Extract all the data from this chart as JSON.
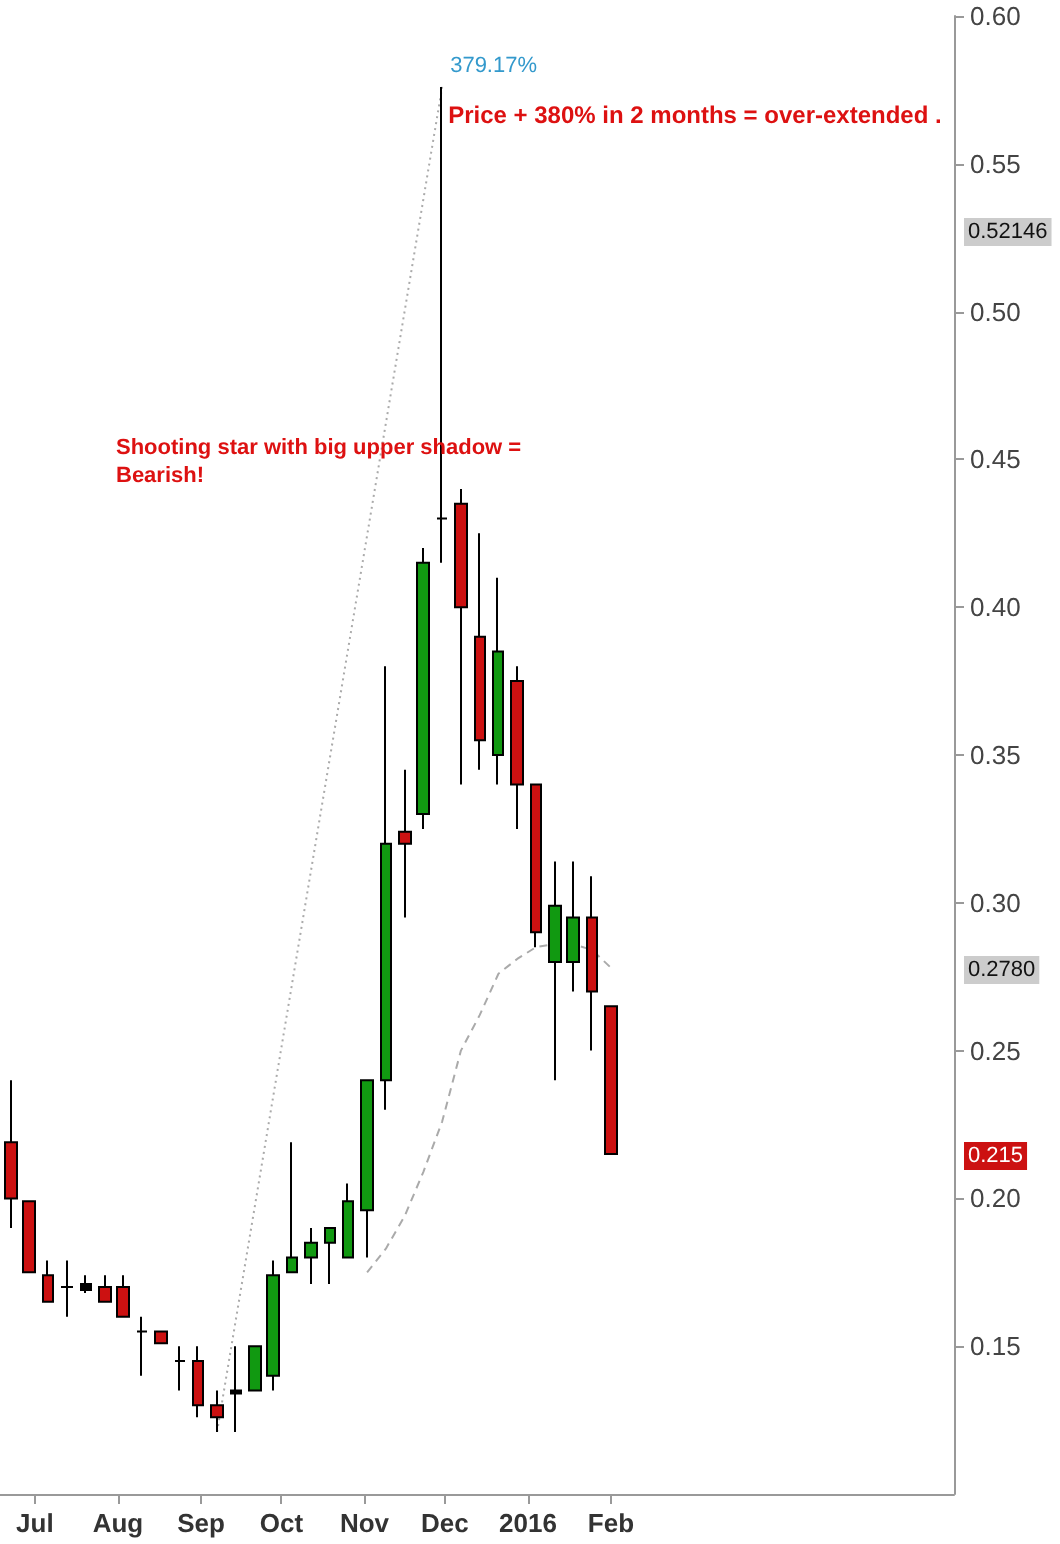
{
  "chart_data": {
    "type": "candlestick",
    "marker": "none",
    "grid": false,
    "xlim": [
      "2015-06-18",
      "2016-06-08"
    ],
    "xticks": [
      {
        "value": "2015-07-01",
        "label": "Jul"
      },
      {
        "value": "2015-08-01",
        "label": "Aug"
      },
      {
        "value": "2015-09-01",
        "label": "Sep"
      },
      {
        "value": "2015-10-01",
        "label": "Oct"
      },
      {
        "value": "2015-11-01",
        "label": "Nov"
      },
      {
        "value": "2015-12-01",
        "label": "Dec"
      },
      {
        "value": "2016-01-01",
        "label": "2016"
      },
      {
        "value": "2016-02-01",
        "label": "Feb"
      }
    ],
    "ylim": [
      0.1,
      0.6
    ],
    "yticks": [
      0.15,
      {
        "value": 0.2,
        "label": "0.20"
      },
      0.25,
      {
        "value": 0.3,
        "label": "0.30"
      },
      0.35,
      {
        "value": 0.4,
        "label": "0.40"
      },
      0.45,
      {
        "value": 0.5,
        "label": "0.50"
      },
      0.55,
      {
        "value": 0.6,
        "label": "0.60"
      }
    ],
    "series": [
      {
        "type": "candlestick",
        "x": [
          "2015-06-22",
          "2015-06-29",
          "2015-07-06",
          "2015-07-13",
          "2015-07-20",
          "2015-07-27",
          "2015-08-03",
          "2015-08-10",
          "2015-08-17",
          "2015-08-24",
          "2015-08-31",
          "2015-09-07",
          "2015-09-14",
          "2015-09-21",
          "2015-09-28",
          "2015-10-05",
          "2015-10-12",
          "2015-10-19",
          "2015-10-26",
          "2015-11-02",
          "2015-11-09",
          "2015-11-16",
          "2015-11-23",
          "2015-11-30",
          "2015-12-07",
          "2015-12-14",
          "2015-12-21",
          "2015-12-28",
          "2016-01-04",
          "2016-01-11",
          "2016-01-18",
          "2016-01-25",
          "2016-02-01"
        ],
        "ohlc": [
          [
            0.219,
            0.24,
            0.19,
            0.2
          ],
          [
            0.199,
            0.199,
            0.175,
            0.175
          ],
          [
            0.174,
            0.179,
            0.165,
            0.165
          ],
          [
            0.17,
            0.179,
            0.16,
            0.17
          ],
          [
            0.169,
            0.174,
            0.168,
            0.171
          ],
          [
            0.17,
            0.174,
            0.165,
            0.165
          ],
          [
            0.17,
            0.174,
            0.16,
            0.16
          ],
          [
            0.155,
            0.16,
            0.14,
            0.155
          ],
          [
            0.155,
            0.155,
            0.151,
            0.151
          ],
          [
            0.145,
            0.15,
            0.135,
            0.145
          ],
          [
            0.145,
            0.15,
            0.126,
            0.13
          ],
          [
            0.13,
            0.135,
            0.121,
            0.126
          ],
          [
            0.134,
            0.15,
            0.121,
            0.135
          ],
          [
            0.135,
            0.15,
            0.135,
            0.15
          ],
          [
            0.14,
            0.179,
            0.135,
            0.174
          ],
          [
            0.175,
            0.219,
            0.175,
            0.18
          ],
          [
            0.18,
            0.19,
            0.171,
            0.185
          ],
          [
            0.185,
            0.19,
            0.171,
            0.19
          ],
          [
            0.18,
            0.205,
            0.18,
            0.199
          ],
          [
            0.196,
            0.24,
            0.18,
            0.24
          ],
          [
            0.24,
            0.38,
            0.23,
            0.32
          ],
          [
            0.324,
            0.345,
            0.295,
            0.32
          ],
          [
            0.33,
            0.42,
            0.325,
            0.415
          ],
          [
            0.43,
            0.576,
            0.415,
            0.43
          ],
          [
            0.435,
            0.44,
            0.34,
            0.4
          ],
          [
            0.39,
            0.425,
            0.345,
            0.355
          ],
          [
            0.35,
            0.41,
            0.34,
            0.385
          ],
          [
            0.375,
            0.38,
            0.325,
            0.34
          ],
          [
            0.34,
            0.34,
            0.285,
            0.29
          ],
          [
            0.28,
            0.314,
            0.24,
            0.299
          ],
          [
            0.28,
            0.314,
            0.27,
            0.295
          ],
          [
            0.295,
            0.309,
            0.25,
            0.27
          ],
          [
            0.265,
            0.265,
            0.215,
            0.215
          ]
        ],
        "colors": [
          "#cc1111",
          "#cc1111",
          "#cc1111",
          "#000000",
          "#000000",
          "#cc1111",
          "#cc1111",
          "#000000",
          "#cc1111",
          "#000000",
          "#cc1111",
          "#cc1111",
          "#000000",
          "#119911",
          "#119911",
          "#119911",
          "#119911",
          "#119911",
          "#119911",
          "#119911",
          "#119911",
          "#cc1111",
          "#119911",
          "#000000",
          "#cc1111",
          "#cc1111",
          "#119911",
          "#cc1111",
          "#cc1111",
          "#119911",
          "#119911",
          "#cc1111",
          "#cc1111"
        ]
      },
      {
        "type": "line",
        "x": [
          "2015-11-02",
          "2015-11-09",
          "2015-11-16",
          "2015-11-23",
          "2015-11-30",
          "2015-12-07",
          "2015-12-14",
          "2015-12-21",
          "2015-12-28",
          "2016-01-04",
          "2016-01-11",
          "2016-01-18",
          "2016-01-25",
          "2016-02-01"
        ],
        "values": [
          0.175,
          0.183,
          0.194,
          0.209,
          0.226,
          0.25,
          0.262,
          0.276,
          0.281,
          0.285,
          0.286,
          0.286,
          0.284,
          0.278
        ],
        "color": "#aaaaaa",
        "line_style": "dashed"
      },
      {
        "type": "line",
        "x": [
          "2015-09-07",
          "2015-11-30"
        ],
        "values": [
          0.121,
          0.576
        ],
        "color": "#aaaaaa",
        "line_style": "dotted"
      }
    ],
    "annotations": [
      {
        "text": "379.17%",
        "x": "2015-11-30",
        "y": 0.576
      },
      {
        "text": "Price + 380% in 2 months = over-extended .",
        "x": "2015-11-30",
        "y": 0.576
      },
      "Shooting star with big upper shadow = Bearish!",
      "0.52146",
      "0.2780",
      "0.215"
    ]
  }
}
